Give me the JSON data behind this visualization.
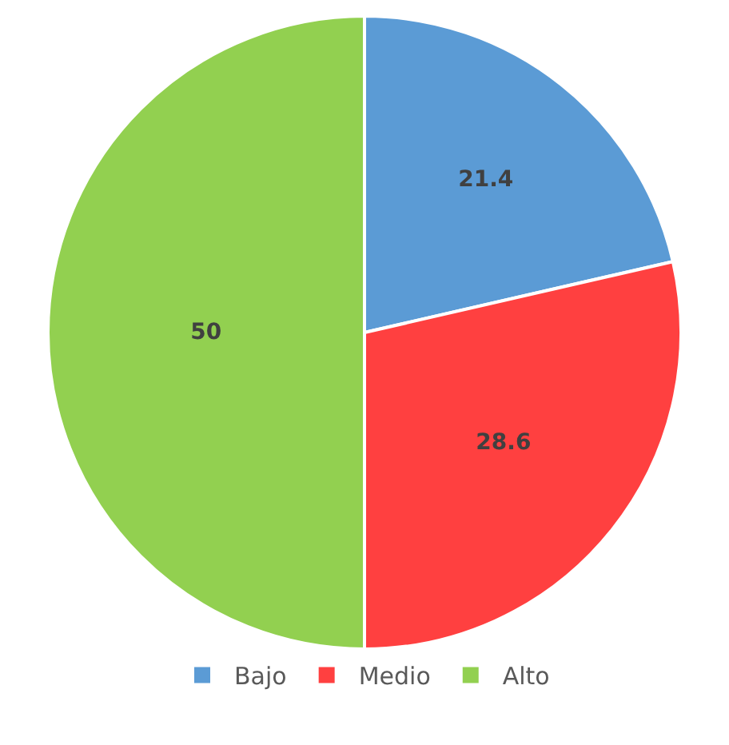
{
  "chart_data": {
    "type": "pie",
    "categories": [
      "Bajo",
      "Medio",
      "Alto"
    ],
    "values": [
      21.4,
      28.6,
      50
    ],
    "colors": [
      "#5b9bd5",
      "#ff4040",
      "#92d050"
    ],
    "data_labels": true,
    "legend": "bottom"
  }
}
